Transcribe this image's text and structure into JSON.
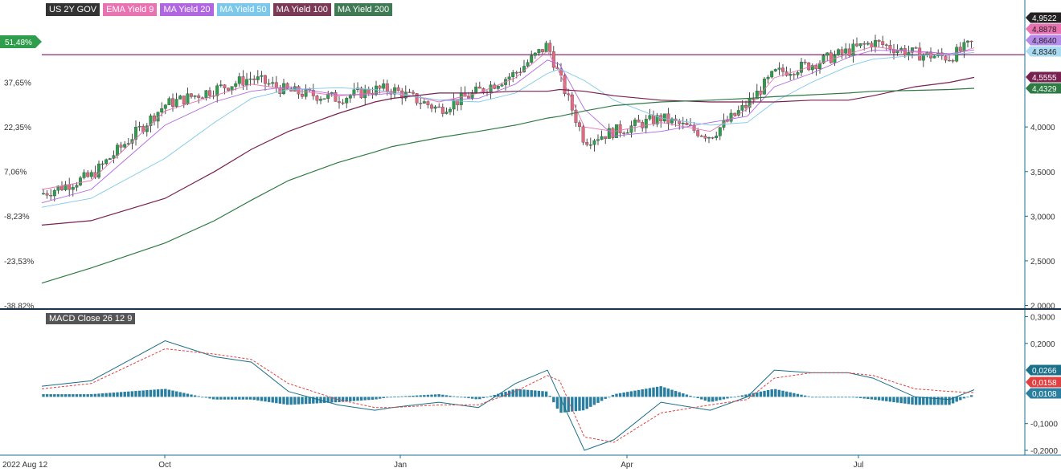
{
  "legend": [
    {
      "label": "US 2Y GOV",
      "bg": "#333333",
      "fg": "#ffffff"
    },
    {
      "label": "EMA Yield 9",
      "bg": "#e873b0",
      "fg": "#ffffff"
    },
    {
      "label": "MA Yield 20",
      "bg": "#b066e0",
      "fg": "#ffffff"
    },
    {
      "label": "MA Yield 50",
      "bg": "#7cc8ea",
      "fg": "#ffffff"
    },
    {
      "label": "MA Yield 100",
      "bg": "#7a3a55",
      "fg": "#ffffff"
    },
    {
      "label": "MA Yield 200",
      "bg": "#3f7a55",
      "fg": "#ffffff"
    }
  ],
  "macd_label": "MACD Close 26 12 9",
  "colors": {
    "up": "#2e9e4c",
    "down": "#e06a80",
    "ema9": "#e873b0",
    "ma20": "#b066e0",
    "ma50": "#7cc8ea",
    "ma100": "#7a2050",
    "ma200": "#2e7a45",
    "hline": "#8a2a70",
    "macd_line": "#1a6f8a",
    "signal_line": "#e04040",
    "histogram": "#2a7fa0",
    "axis": "#1a6f8a"
  },
  "chart_data": [
    {
      "type": "line",
      "title": "US 2Y GOV",
      "x_ticks": [
        "2022 Aug 12",
        "Oct",
        "Jan",
        "Apr",
        "Jul"
      ],
      "right_axis_ticks": [
        "2,0000",
        "2,5000",
        "3,0000",
        "3,5000",
        "4,0000"
      ],
      "right_axis_range": [
        2.0,
        5.0
      ],
      "left_axis_ticks": [
        "51,48%",
        "37,65%",
        "22,35%",
        "7,06%",
        "-8,23%",
        "-23,53%",
        "-38,82%"
      ],
      "left_axis_range": [
        -38.82,
        51.48
      ],
      "horizontal_line": 4.81,
      "x": [
        "2022-08-12",
        "2022-09-01",
        "2022-10-01",
        "2022-10-21",
        "2022-11-05",
        "2022-11-20",
        "2022-12-10",
        "2022-12-25",
        "2023-01-01",
        "2023-01-20",
        "2023-02-05",
        "2023-02-20",
        "2023-03-05",
        "2023-03-10",
        "2023-03-20",
        "2023-04-01",
        "2023-04-20",
        "2023-05-10",
        "2023-05-25",
        "2023-06-05",
        "2023-06-20",
        "2023-07-05",
        "2023-07-15",
        "2023-08-01",
        "2023-08-15",
        "2023-08-25"
      ],
      "series": [
        {
          "name": "US 2Y GOV",
          "values": [
            3.25,
            3.45,
            4.25,
            4.42,
            4.55,
            4.4,
            4.32,
            4.42,
            4.42,
            4.2,
            4.4,
            4.6,
            4.92,
            4.55,
            3.85,
            3.95,
            4.1,
            3.9,
            4.25,
            4.6,
            4.7,
            4.85,
            4.95,
            4.82,
            4.78,
            4.95
          ],
          "last_label": "4,9522"
        },
        {
          "name": "EMA Yield 9",
          "values": [
            3.3,
            3.4,
            4.18,
            4.35,
            4.48,
            4.42,
            4.35,
            4.38,
            4.4,
            4.28,
            4.38,
            4.55,
            4.85,
            4.6,
            4.0,
            3.95,
            4.05,
            3.95,
            4.2,
            4.55,
            4.68,
            4.82,
            4.9,
            4.84,
            4.8,
            4.8878
          ],
          "last_label": "4,8878"
        },
        {
          "name": "MA Yield 20",
          "values": [
            3.15,
            3.3,
            4.02,
            4.28,
            4.4,
            4.45,
            4.36,
            4.36,
            4.38,
            4.3,
            4.32,
            4.48,
            4.75,
            4.7,
            4.2,
            3.9,
            3.95,
            4.05,
            4.12,
            4.45,
            4.6,
            4.78,
            4.86,
            4.85,
            4.82,
            4.864
          ],
          "last_label": "4,8640"
        },
        {
          "name": "MA Yield 50",
          "values": [
            3.1,
            3.2,
            3.65,
            4.05,
            4.32,
            4.42,
            4.44,
            4.42,
            4.38,
            4.3,
            4.28,
            4.38,
            4.6,
            4.65,
            4.52,
            4.3,
            4.1,
            4.02,
            4.05,
            4.28,
            4.5,
            4.68,
            4.76,
            4.8,
            4.81,
            4.8346
          ],
          "last_label": "4,8346"
        },
        {
          "name": "MA Yield 100",
          "values": [
            2.9,
            2.95,
            3.2,
            3.5,
            3.75,
            3.95,
            4.15,
            4.28,
            4.32,
            4.38,
            4.38,
            4.4,
            4.4,
            4.42,
            4.4,
            4.35,
            4.3,
            4.28,
            4.28,
            4.28,
            4.3,
            4.3,
            4.35,
            4.45,
            4.5,
            4.5555
          ],
          "last_label": "4,5555"
        },
        {
          "name": "MA Yield 200",
          "values": [
            2.25,
            2.42,
            2.7,
            2.95,
            3.18,
            3.4,
            3.6,
            3.72,
            3.78,
            3.88,
            3.95,
            4.02,
            4.1,
            4.12,
            4.18,
            4.24,
            4.28,
            4.3,
            4.32,
            4.34,
            4.36,
            4.38,
            4.4,
            4.41,
            4.42,
            4.4329
          ],
          "last_label": "4,4329"
        }
      ]
    },
    {
      "type": "line",
      "title": "MACD Close 26 12 9",
      "right_axis_ticks": [
        "0,3000",
        "0,2000",
        "-0,1000",
        "-0,2000"
      ],
      "right_axis_range": [
        -0.2,
        0.3
      ],
      "x": [
        "2022-08-12",
        "2022-09-01",
        "2022-10-01",
        "2022-10-21",
        "2022-11-05",
        "2022-11-20",
        "2022-12-10",
        "2022-12-25",
        "2023-01-01",
        "2023-01-20",
        "2023-02-05",
        "2023-02-20",
        "2023-03-05",
        "2023-03-10",
        "2023-03-20",
        "2023-04-01",
        "2023-04-20",
        "2023-05-10",
        "2023-05-25",
        "2023-06-05",
        "2023-06-20",
        "2023-07-05",
        "2023-07-15",
        "2023-08-01",
        "2023-08-15",
        "2023-08-25"
      ],
      "series": [
        {
          "name": "MACD",
          "values": [
            0.04,
            0.06,
            0.21,
            0.15,
            0.13,
            0.02,
            -0.03,
            -0.05,
            -0.04,
            -0.02,
            -0.04,
            0.05,
            0.1,
            0.0,
            -0.2,
            -0.16,
            -0.02,
            -0.05,
            0.0,
            0.1,
            0.09,
            0.09,
            0.07,
            0.0,
            -0.01,
            0.0266
          ],
          "last_label": "0,0266"
        },
        {
          "name": "Signal",
          "values": [
            0.03,
            0.05,
            0.18,
            0.16,
            0.14,
            0.05,
            -0.01,
            -0.04,
            -0.04,
            -0.03,
            -0.03,
            0.02,
            0.08,
            0.06,
            -0.15,
            -0.17,
            -0.06,
            -0.03,
            -0.01,
            0.07,
            0.09,
            0.09,
            0.08,
            0.03,
            0.02,
            0.0158
          ],
          "last_label": "0,0158"
        },
        {
          "name": "Histogram",
          "values": [
            0.01,
            0.01,
            0.03,
            -0.01,
            -0.01,
            -0.03,
            -0.02,
            -0.01,
            0.0,
            0.01,
            -0.01,
            0.03,
            0.02,
            -0.06,
            -0.05,
            0.01,
            0.04,
            -0.02,
            0.01,
            0.03,
            0.0,
            0.0,
            -0.01,
            -0.03,
            -0.03,
            0.0108
          ],
          "last_label": "0,0108"
        }
      ]
    }
  ]
}
